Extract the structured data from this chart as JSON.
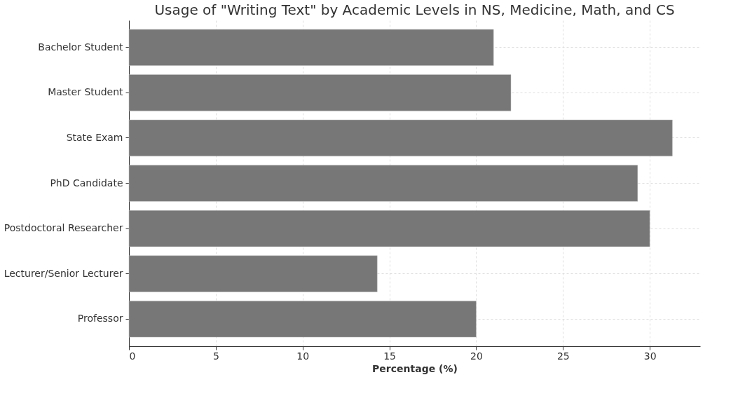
{
  "chart_data": {
    "type": "bar",
    "orientation": "horizontal",
    "title": "Usage of \"Writing Text\" by Academic Levels in NS, Medicine, Math, and CS",
    "xlabel": "Percentage (%)",
    "categories": [
      "Bachelor Student",
      "Master Student",
      "State Exam",
      "PhD Candidate",
      "Postdoctoral Researcher",
      "Lecturer/Senior Lecturer",
      "Professor"
    ],
    "values": [
      21.0,
      22.0,
      31.3,
      29.3,
      30.0,
      14.3,
      20.0
    ],
    "color": "#777777",
    "xlim": [
      0,
      32.9
    ],
    "xticks": [
      0,
      5,
      10,
      15,
      20,
      25,
      30
    ],
    "grid": true
  }
}
